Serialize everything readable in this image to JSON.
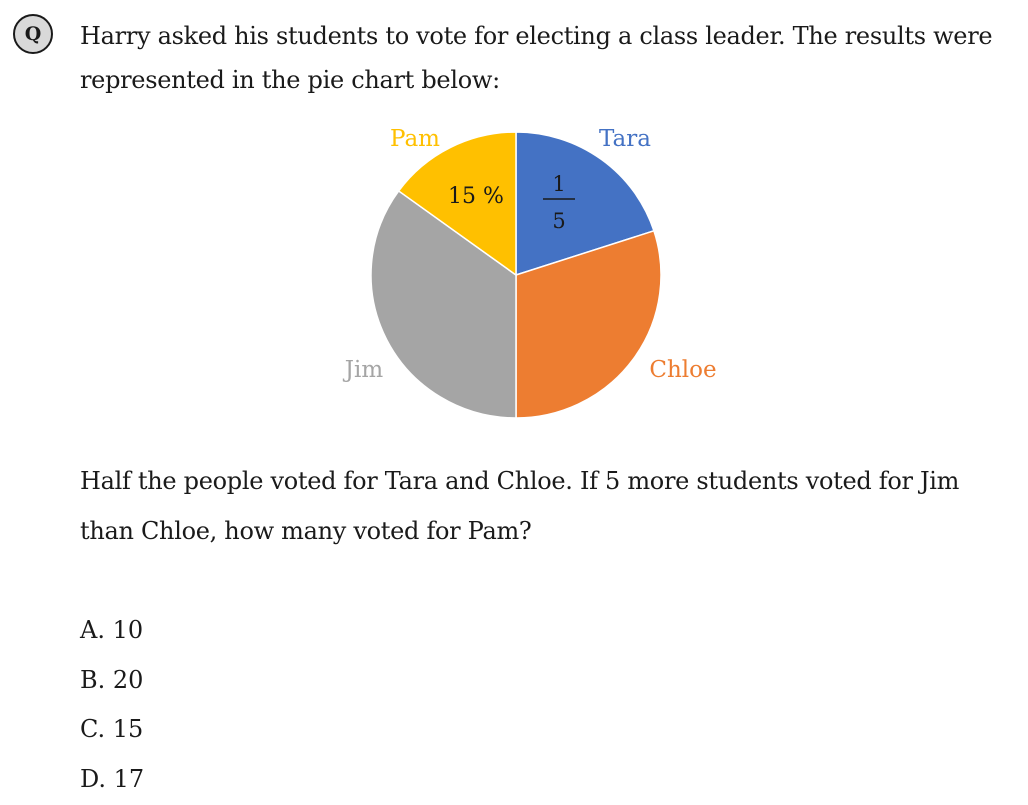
{
  "badge": "Q",
  "question_text": "Harry asked his students to vote for electing a class leader. The results were represented in the pie chart below:",
  "chart_data": {
    "type": "pie",
    "slices": [
      {
        "name": "Tara",
        "label_color": "#4472c4",
        "color": "#4472c4",
        "value": 20,
        "annotation": {
          "numerator": "1",
          "denominator": "5"
        }
      },
      {
        "name": "Chloe",
        "label_color": "#ed7d31",
        "color": "#ed7d31",
        "value": 30
      },
      {
        "name": "Jim",
        "label_color": "#a5a5a5",
        "color": "#a5a5a5",
        "value": 35
      },
      {
        "name": "Pam",
        "label_color": "#ffc000",
        "color": "#ffc000",
        "value": 15,
        "annotation": {
          "text": "15 %"
        }
      }
    ]
  },
  "followup_text": "Half the people voted for Tara and Chloe. If 5 more students voted for Jim than Chloe, how many voted for Pam?",
  "options": [
    "A. 10",
    "B. 20",
    "C. 15",
    "D. 17"
  ]
}
